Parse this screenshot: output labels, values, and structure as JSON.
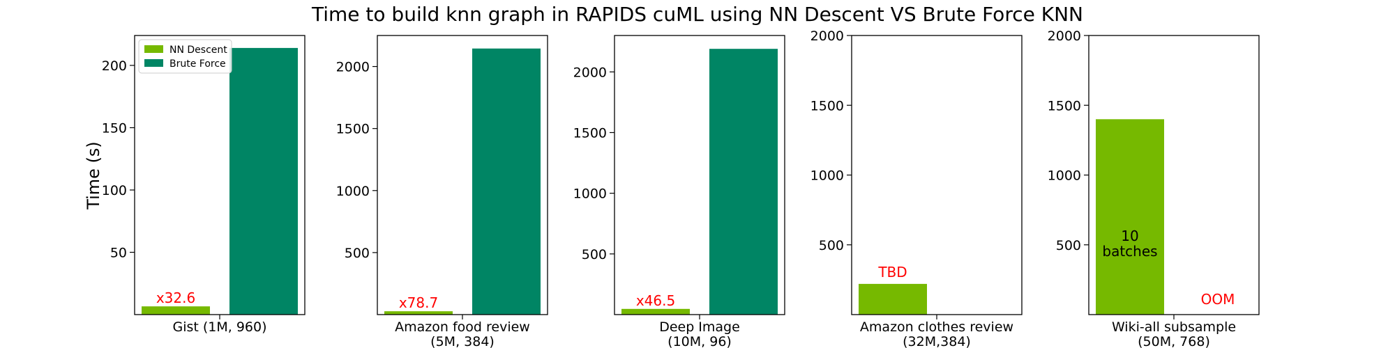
{
  "figure": {
    "title": "Time to build knn graph in RAPIDS cuML using NN Descent VS Brute Force KNN",
    "ylabel": "Time (s)",
    "legend": [
      {
        "label": "NN Descent",
        "color": "#76b900"
      },
      {
        "label": "Brute Force",
        "color": "#008564"
      }
    ]
  },
  "chart_data": [
    {
      "type": "bar",
      "xlabel": [
        "Gist (1M, 960)"
      ],
      "categories": [
        "NN Descent",
        "Brute Force"
      ],
      "values": [
        6.6,
        214
      ],
      "ylim": [
        0,
        224
      ],
      "yticks": [
        50,
        100,
        150,
        200
      ],
      "annotations": [
        {
          "text": "x32.6",
          "color": "#ff0000"
        }
      ],
      "legend_placement": "top-left"
    },
    {
      "type": "bar",
      "xlabel": [
        "Amazon food review",
        "(5M, 384)"
      ],
      "categories": [
        "NN Descent",
        "Brute Force"
      ],
      "values": [
        27,
        2145
      ],
      "ylim": [
        0,
        2250
      ],
      "yticks": [
        500,
        1000,
        1500,
        2000
      ],
      "annotations": [
        {
          "text": "x78.7",
          "color": "#ff0000"
        }
      ]
    },
    {
      "type": "bar",
      "xlabel": [
        "Deep Image",
        "(10M, 96)"
      ],
      "categories": [
        "NN Descent",
        "Brute Force"
      ],
      "values": [
        47,
        2190
      ],
      "ylim": [
        0,
        2300
      ],
      "yticks": [
        500,
        1000,
        1500,
        2000
      ],
      "annotations": [
        {
          "text": "x46.5",
          "color": "#ff0000"
        }
      ]
    },
    {
      "type": "bar",
      "xlabel": [
        "Amazon clothes review",
        "(32M,384)"
      ],
      "categories": [
        "NN Descent",
        "Brute Force"
      ],
      "values": [
        220,
        0
      ],
      "ylim": [
        0,
        2000
      ],
      "yticks": [
        500,
        1000,
        1500,
        2000
      ],
      "annotations": [
        {
          "text": "TBD",
          "color": "#ff0000"
        }
      ]
    },
    {
      "type": "bar",
      "xlabel": [
        "Wiki-all subsample",
        "(50M, 768)"
      ],
      "categories": [
        "NN Descent",
        "Brute Force"
      ],
      "values": [
        1400,
        0
      ],
      "ylim": [
        0,
        2000
      ],
      "yticks": [
        500,
        1000,
        1500,
        2000
      ],
      "annotations": [
        {
          "text": "10",
          "color": "#000000"
        },
        {
          "text": "batches",
          "color": "#000000"
        },
        {
          "text": "OOM",
          "color": "#ff0000"
        }
      ]
    }
  ]
}
